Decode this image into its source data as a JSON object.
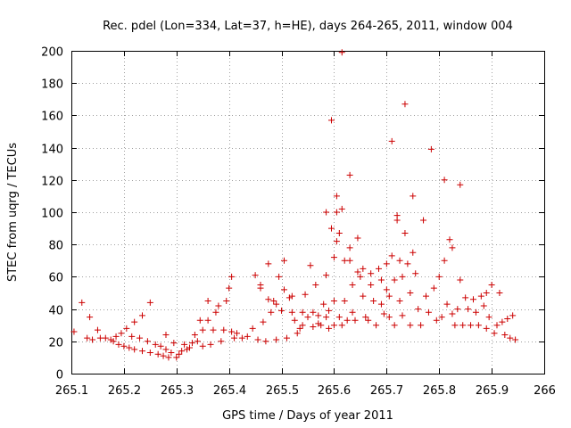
{
  "chart_data": {
    "type": "scatter",
    "title": "Rec. pdel (Lon=334, Lat=37, h=HE), days 264-265, 2011, window 004",
    "xlabel": "GPS time / Days of year 2011",
    "ylabel": "STEC from uqrg / TECUs",
    "xlim": [
      265.1,
      266
    ],
    "ylim": [
      0,
      200
    ],
    "x_ticks": [
      "265.1",
      "265.2",
      "265.3",
      "265.4",
      "265.5",
      "265.6",
      "265.7",
      "265.8",
      "265.9",
      "266"
    ],
    "y_ticks": [
      "0",
      "20",
      "40",
      "60",
      "80",
      "100",
      "120",
      "140",
      "160",
      "180",
      "200"
    ],
    "grid": true,
    "marker": "plus",
    "marker_color": "#cc0000",
    "series": [
      {
        "name": "STEC",
        "points": [
          [
            265.105,
            26
          ],
          [
            265.12,
            44
          ],
          [
            265.135,
            35
          ],
          [
            265.13,
            22
          ],
          [
            265.14,
            21
          ],
          [
            265.15,
            27
          ],
          [
            265.155,
            22
          ],
          [
            265.165,
            22
          ],
          [
            265.175,
            21
          ],
          [
            265.18,
            20
          ],
          [
            265.185,
            23
          ],
          [
            265.19,
            18
          ],
          [
            265.195,
            25
          ],
          [
            265.2,
            17
          ],
          [
            265.205,
            28
          ],
          [
            265.21,
            16
          ],
          [
            265.215,
            23
          ],
          [
            265.22,
            32
          ],
          [
            265.22,
            15
          ],
          [
            265.23,
            22
          ],
          [
            265.235,
            36
          ],
          [
            265.235,
            14
          ],
          [
            265.245,
            20
          ],
          [
            265.25,
            44
          ],
          [
            265.25,
            13
          ],
          [
            265.26,
            18
          ],
          [
            265.265,
            12
          ],
          [
            265.27,
            17
          ],
          [
            265.275,
            11
          ],
          [
            265.28,
            24
          ],
          [
            265.28,
            15
          ],
          [
            265.285,
            10
          ],
          [
            265.29,
            13
          ],
          [
            265.295,
            19
          ],
          [
            265.3,
            10
          ],
          [
            265.305,
            12
          ],
          [
            265.31,
            14
          ],
          [
            265.315,
            18
          ],
          [
            265.32,
            15
          ],
          [
            265.325,
            16
          ],
          [
            265.33,
            19
          ],
          [
            265.335,
            24
          ],
          [
            265.34,
            20
          ],
          [
            265.345,
            33
          ],
          [
            265.35,
            27
          ],
          [
            265.35,
            17
          ],
          [
            265.36,
            33
          ],
          [
            265.36,
            45
          ],
          [
            265.365,
            18
          ],
          [
            265.37,
            27
          ],
          [
            265.375,
            38
          ],
          [
            265.38,
            42
          ],
          [
            265.385,
            20
          ],
          [
            265.39,
            27
          ],
          [
            265.395,
            45
          ],
          [
            265.4,
            53
          ],
          [
            265.405,
            60
          ],
          [
            265.405,
            26
          ],
          [
            265.41,
            22
          ],
          [
            265.415,
            25
          ],
          [
            265.425,
            22
          ],
          [
            265.435,
            23
          ],
          [
            265.445,
            28
          ],
          [
            265.45,
            61
          ],
          [
            265.455,
            21
          ],
          [
            265.46,
            55
          ],
          [
            265.46,
            53
          ],
          [
            265.465,
            32
          ],
          [
            265.47,
            20
          ],
          [
            265.475,
            46
          ],
          [
            265.475,
            68
          ],
          [
            265.48,
            38
          ],
          [
            265.485,
            45
          ],
          [
            265.49,
            43
          ],
          [
            265.49,
            21
          ],
          [
            265.495,
            60
          ],
          [
            265.5,
            39
          ],
          [
            265.505,
            52
          ],
          [
            265.505,
            70
          ],
          [
            265.51,
            22
          ],
          [
            265.515,
            47
          ],
          [
            265.52,
            38
          ],
          [
            265.52,
            48
          ],
          [
            265.525,
            33
          ],
          [
            265.53,
            25
          ],
          [
            265.535,
            28
          ],
          [
            265.54,
            38
          ],
          [
            265.54,
            30
          ],
          [
            265.545,
            49
          ],
          [
            265.55,
            35
          ],
          [
            265.555,
            67
          ],
          [
            265.56,
            29
          ],
          [
            265.56,
            38
          ],
          [
            265.565,
            55
          ],
          [
            265.57,
            31
          ],
          [
            265.57,
            36
          ],
          [
            265.575,
            30
          ],
          [
            265.58,
            43
          ],
          [
            265.585,
            100
          ],
          [
            265.585,
            61
          ],
          [
            265.585,
            35
          ],
          [
            265.59,
            28
          ],
          [
            265.59,
            39
          ],
          [
            265.595,
            157
          ],
          [
            265.595,
            90
          ],
          [
            265.6,
            72
          ],
          [
            265.6,
            45
          ],
          [
            265.6,
            30
          ],
          [
            265.605,
            82
          ],
          [
            265.605,
            100
          ],
          [
            265.605,
            110
          ],
          [
            265.61,
            87
          ],
          [
            265.61,
            35
          ],
          [
            265.615,
            199
          ],
          [
            265.615,
            102
          ],
          [
            265.615,
            30
          ],
          [
            265.62,
            70
          ],
          [
            265.62,
            45
          ],
          [
            265.625,
            33
          ],
          [
            265.63,
            123
          ],
          [
            265.63,
            78
          ],
          [
            265.63,
            70
          ],
          [
            265.635,
            55
          ],
          [
            265.635,
            38
          ],
          [
            265.64,
            33
          ],
          [
            265.645,
            84
          ],
          [
            265.645,
            63
          ],
          [
            265.65,
            60
          ],
          [
            265.655,
            65
          ],
          [
            265.655,
            48
          ],
          [
            265.66,
            35
          ],
          [
            265.665,
            33
          ],
          [
            265.67,
            62
          ],
          [
            265.67,
            55
          ],
          [
            265.675,
            45
          ],
          [
            265.68,
            30
          ],
          [
            265.685,
            65
          ],
          [
            265.69,
            58
          ],
          [
            265.69,
            43
          ],
          [
            265.695,
            37
          ],
          [
            265.7,
            52
          ],
          [
            265.7,
            68
          ],
          [
            265.705,
            48
          ],
          [
            265.705,
            35
          ],
          [
            265.71,
            144
          ],
          [
            265.71,
            73
          ],
          [
            265.715,
            58
          ],
          [
            265.715,
            30
          ],
          [
            265.72,
            95
          ],
          [
            265.72,
            98
          ],
          [
            265.725,
            70
          ],
          [
            265.725,
            45
          ],
          [
            265.73,
            60
          ],
          [
            265.73,
            36
          ],
          [
            265.735,
            167
          ],
          [
            265.735,
            87
          ],
          [
            265.74,
            68
          ],
          [
            265.745,
            50
          ],
          [
            265.745,
            30
          ],
          [
            265.75,
            110
          ],
          [
            265.75,
            75
          ],
          [
            265.755,
            62
          ],
          [
            265.76,
            40
          ],
          [
            265.765,
            30
          ],
          [
            265.77,
            95
          ],
          [
            265.775,
            48
          ],
          [
            265.78,
            38
          ],
          [
            265.785,
            139
          ],
          [
            265.79,
            53
          ],
          [
            265.795,
            33
          ],
          [
            265.8,
            60
          ],
          [
            265.805,
            35
          ],
          [
            265.81,
            120
          ],
          [
            265.81,
            70
          ],
          [
            265.815,
            43
          ],
          [
            265.82,
            83
          ],
          [
            265.825,
            78
          ],
          [
            265.825,
            37
          ],
          [
            265.83,
            30
          ],
          [
            265.835,
            40
          ],
          [
            265.84,
            117
          ],
          [
            265.84,
            58
          ],
          [
            265.845,
            30
          ],
          [
            265.85,
            47
          ],
          [
            265.855,
            40
          ],
          [
            265.86,
            30
          ],
          [
            265.865,
            46
          ],
          [
            265.87,
            38
          ],
          [
            265.875,
            30
          ],
          [
            265.88,
            48
          ],
          [
            265.885,
            42
          ],
          [
            265.89,
            28
          ],
          [
            265.89,
            50
          ],
          [
            265.895,
            35
          ],
          [
            265.9,
            55
          ],
          [
            265.905,
            25
          ],
          [
            265.91,
            30
          ],
          [
            265.915,
            50
          ],
          [
            265.92,
            32
          ],
          [
            265.925,
            24
          ],
          [
            265.93,
            34
          ],
          [
            265.935,
            22
          ],
          [
            265.94,
            36
          ],
          [
            265.945,
            21
          ]
        ]
      }
    ]
  }
}
